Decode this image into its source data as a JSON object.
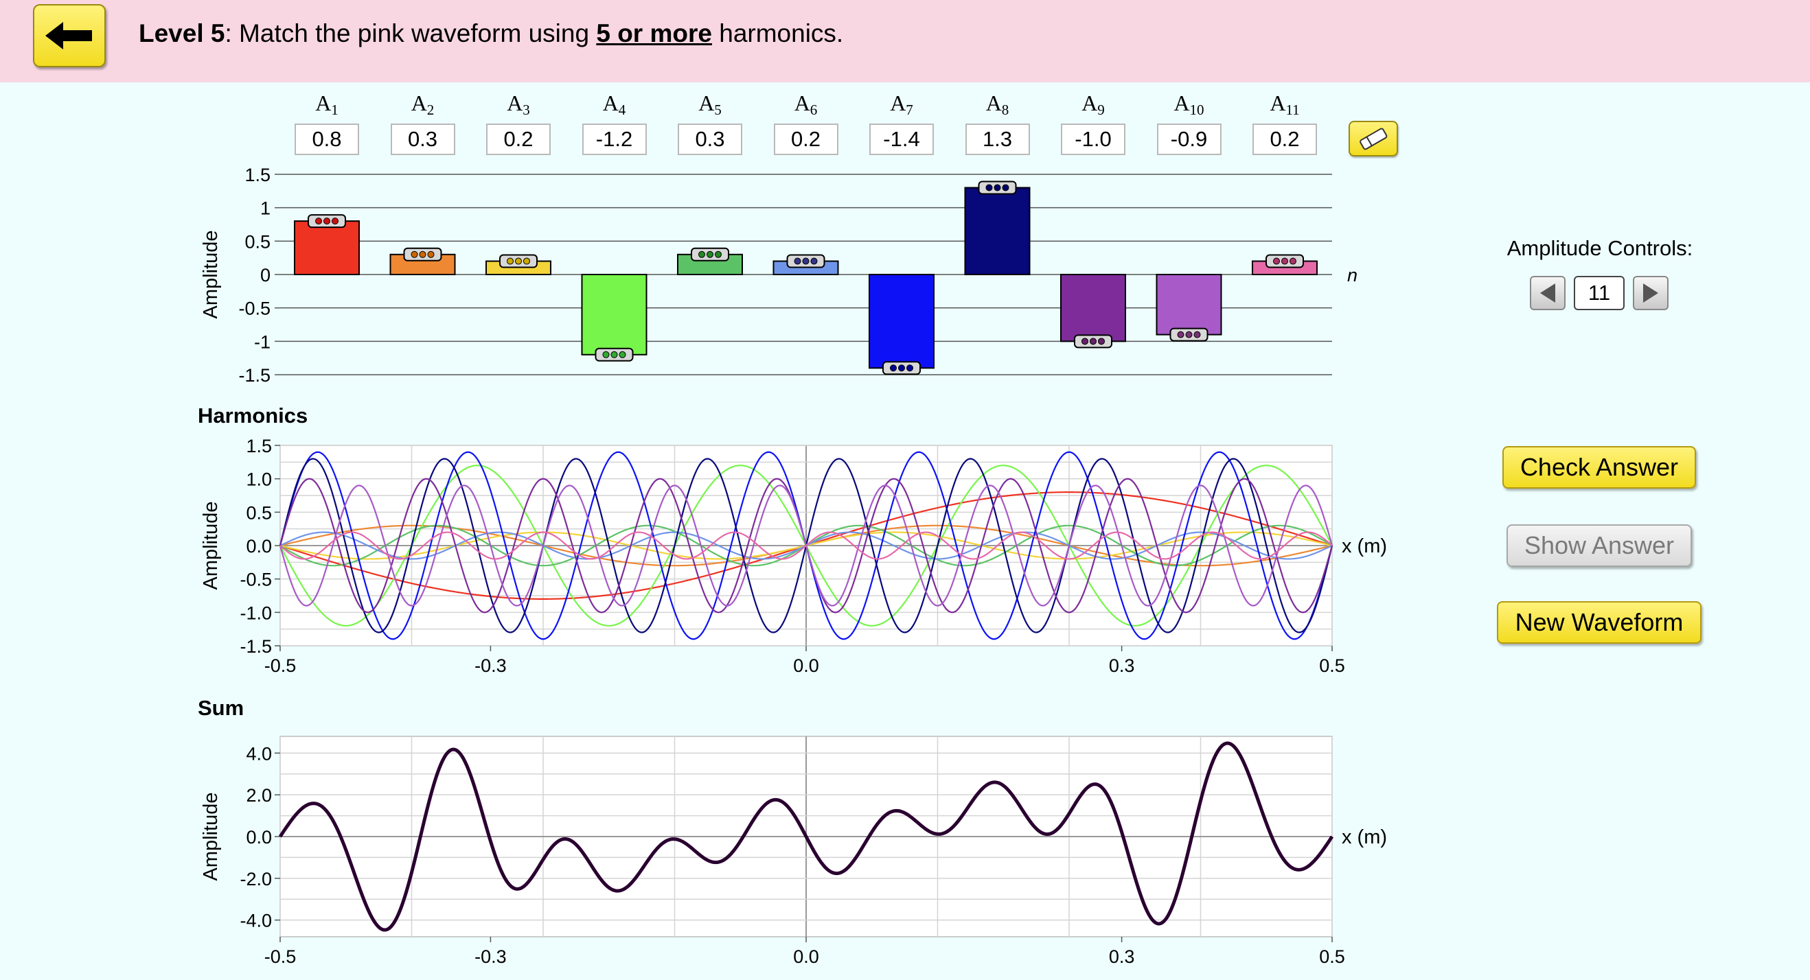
{
  "header": {
    "level_label": "Level 5",
    "instruction_pre": ": Match the pink waveform using ",
    "instruction_emph": "5 or more",
    "instruction_post": " harmonics."
  },
  "amplitudes": [
    {
      "label": "A",
      "sub": "1",
      "value": "0.8",
      "num": 0.8,
      "color": "#ee3322",
      "dot": "#c11"
    },
    {
      "label": "A",
      "sub": "2",
      "value": "0.3",
      "num": 0.3,
      "color": "#ee8833",
      "dot": "#c60"
    },
    {
      "label": "A",
      "sub": "3",
      "value": "0.2",
      "num": 0.2,
      "color": "#f3d43a",
      "dot": "#ca0"
    },
    {
      "label": "A",
      "sub": "4",
      "value": "-1.2",
      "num": -1.2,
      "color": "#77f54a",
      "dot": "#3a3"
    },
    {
      "label": "A",
      "sub": "5",
      "value": "0.3",
      "num": 0.3,
      "color": "#5cc266",
      "dot": "#282"
    },
    {
      "label": "A",
      "sub": "6",
      "value": "0.2",
      "num": 0.2,
      "color": "#6f95e8",
      "dot": "#338"
    },
    {
      "label": "A",
      "sub": "7",
      "value": "-1.4",
      "num": -1.4,
      "color": "#0c12f5",
      "dot": "#009"
    },
    {
      "label": "A",
      "sub": "8",
      "value": "1.3",
      "num": 1.3,
      "color": "#07087a",
      "dot": "#006"
    },
    {
      "label": "A",
      "sub": "9",
      "value": "-1.0",
      "num": -1.0,
      "color": "#7d2c9a",
      "dot": "#626"
    },
    {
      "label": "A",
      "sub": "10",
      "value": "-0.9",
      "num": -0.9,
      "color": "#a75ac8",
      "dot": "#737"
    },
    {
      "label": "A",
      "sub": "11",
      "value": "0.2",
      "num": 0.2,
      "color": "#e669a8",
      "dot": "#a36"
    }
  ],
  "bar_chart": {
    "ylabel": "Amplitude",
    "xlabel": "n",
    "yticks": [
      "1.5",
      "1",
      "0.5",
      "0",
      "-0.5",
      "-1",
      "-1.5"
    ],
    "ylim": [
      -1.5,
      1.5
    ]
  },
  "amplitude_controls": {
    "label": "Amplitude Controls:",
    "count": "11"
  },
  "buttons": {
    "check_answer": "Check Answer",
    "show_answer": "Show Answer",
    "new_waveform": "New Waveform"
  },
  "harmonics_chart": {
    "title": "Harmonics",
    "ylabel": "Amplitude",
    "xlabel": "x (m)",
    "yticks": [
      "1.5",
      "1.0",
      "0.5",
      "0.0",
      "-0.5",
      "-1.0",
      "-1.5"
    ],
    "xticks": [
      "-0.5",
      "-0.3",
      "0.0",
      "0.3",
      "0.5"
    ]
  },
  "sum_chart": {
    "title": "Sum",
    "ylabel": "Amplitude",
    "xlabel": "x (m)",
    "yticks": [
      "4.0",
      "2.0",
      "0.0",
      "-2.0",
      "-4.0"
    ],
    "xticks": [
      "-0.5",
      "-0.3",
      "0.0",
      "0.3",
      "0.5"
    ]
  },
  "chart_data": [
    {
      "type": "bar",
      "categories": [
        "A1",
        "A2",
        "A3",
        "A4",
        "A5",
        "A6",
        "A7",
        "A8",
        "A9",
        "A10",
        "A11"
      ],
      "values": [
        0.8,
        0.3,
        0.2,
        -1.2,
        0.3,
        0.2,
        -1.4,
        1.3,
        -1.0,
        -0.9,
        0.2
      ],
      "ylabel": "Amplitude",
      "xlabel": "n",
      "ylim": [
        -1.5,
        1.5
      ]
    },
    {
      "type": "line",
      "title": "Harmonics",
      "function": "A_n * sin(2*pi*n*x)",
      "x_range": [
        -0.5,
        0.5
      ],
      "ylabel": "Amplitude",
      "xlabel": "x (m)",
      "ylim": [
        -1.5,
        1.5
      ]
    },
    {
      "type": "line",
      "title": "Sum",
      "function": "sum over n of A_n * sin(2*pi*n*x)",
      "x_range": [
        -0.5,
        0.5
      ],
      "ylabel": "Amplitude",
      "xlabel": "x (m)",
      "ylim": [
        -4.8,
        4.8
      ]
    }
  ]
}
